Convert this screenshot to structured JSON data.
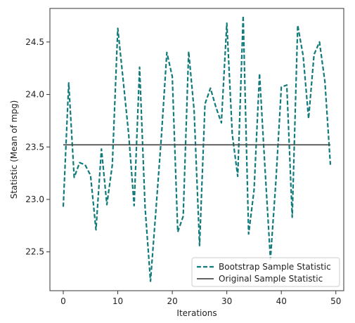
{
  "chart_data": {
    "type": "line",
    "title": "",
    "xlabel": "Iterations",
    "ylabel": "Statistic (Mean of mpg)",
    "xlim": [
      -2.45,
      51.45
    ],
    "ylim": [
      22.13,
      24.82
    ],
    "x_ticks": [
      0,
      10,
      20,
      30,
      40,
      50
    ],
    "y_ticks": [
      22.5,
      23.0,
      23.5,
      24.0,
      24.5
    ],
    "grid": false,
    "legend_position": "lower-right",
    "series": [
      {
        "name": "Bootstrap Sample Statistic",
        "color": "#117a7a",
        "style": "dashed",
        "x": [
          0,
          1,
          2,
          3,
          4,
          5,
          6,
          7,
          8,
          9,
          10,
          11,
          12,
          13,
          14,
          15,
          16,
          17,
          18,
          19,
          20,
          21,
          22,
          23,
          24,
          25,
          26,
          27,
          28,
          29,
          30,
          31,
          32,
          33,
          34,
          35,
          36,
          37,
          38,
          39,
          40,
          41,
          42,
          43,
          44,
          45,
          46,
          47,
          48,
          49
        ],
        "y": [
          22.93,
          24.11,
          23.21,
          23.35,
          23.33,
          23.23,
          22.71,
          23.48,
          22.95,
          23.33,
          24.63,
          24.13,
          23.62,
          22.94,
          24.26,
          22.93,
          22.22,
          22.9,
          23.6,
          24.4,
          24.17,
          22.69,
          22.84,
          24.41,
          23.85,
          22.56,
          23.91,
          24.06,
          23.88,
          23.73,
          24.68,
          23.62,
          23.22,
          24.75,
          22.67,
          23.09,
          24.2,
          23.3,
          22.43,
          23.17,
          24.07,
          24.09,
          22.83,
          24.66,
          24.37,
          23.77,
          24.38,
          24.5,
          24.12,
          23.33
        ]
      },
      {
        "name": "Original Sample Statistic",
        "color": "#4d4d4d",
        "style": "solid",
        "x": [
          0,
          49
        ],
        "y": [
          23.52,
          23.52
        ]
      }
    ]
  }
}
